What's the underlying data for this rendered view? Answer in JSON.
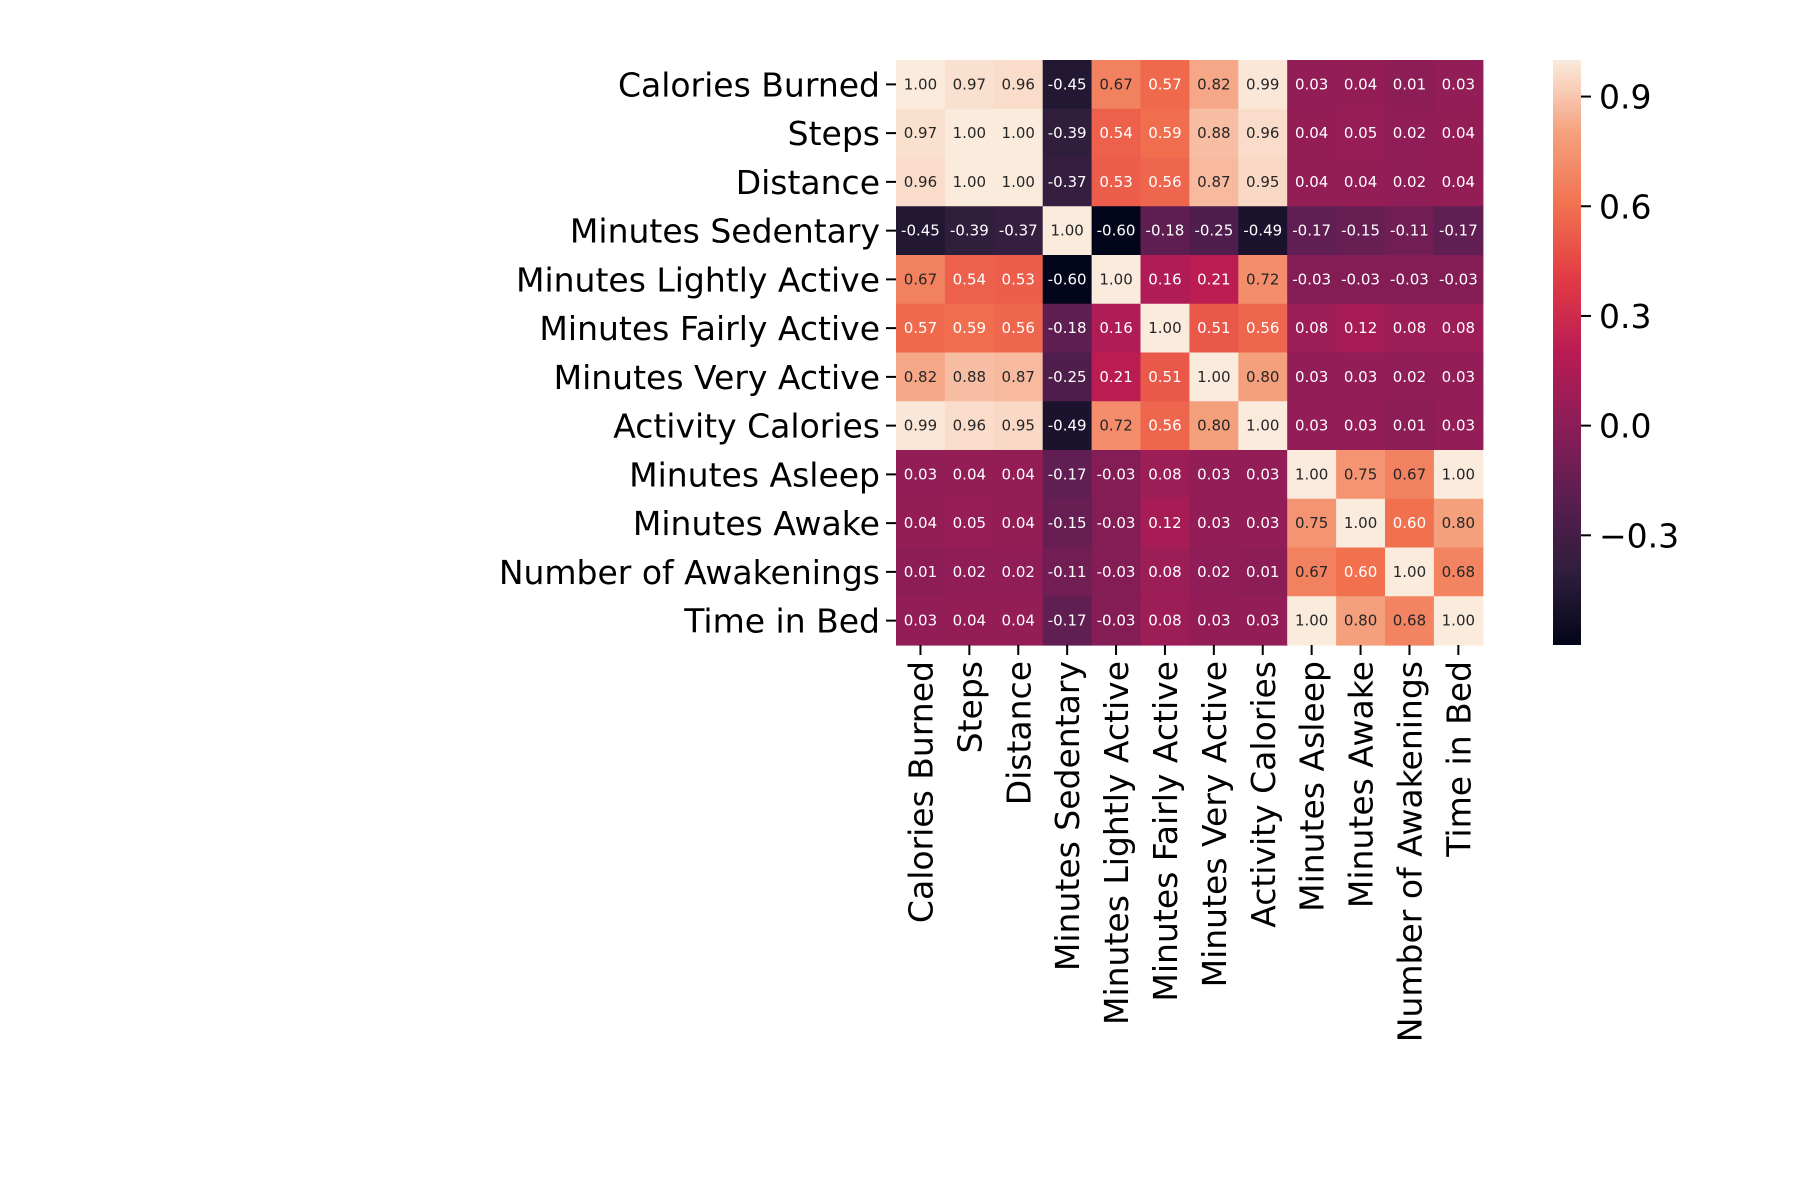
{
  "chart_data": {
    "type": "heatmap",
    "title": "",
    "xlabel": "",
    "ylabel": "",
    "labels": [
      "Calories Burned",
      "Steps",
      "Distance",
      "Minutes Sedentary",
      "Minutes Lightly Active",
      "Minutes Fairly Active",
      "Minutes Very Active",
      "Activity Calories",
      "Minutes Asleep",
      "Minutes Awake",
      "Number of Awakenings",
      "Time in Bed"
    ],
    "matrix": [
      [
        1.0,
        0.97,
        0.96,
        -0.45,
        0.67,
        0.57,
        0.82,
        0.99,
        0.03,
        0.04,
        0.01,
        0.03
      ],
      [
        0.97,
        1.0,
        1.0,
        -0.39,
        0.54,
        0.59,
        0.88,
        0.96,
        0.04,
        0.05,
        0.02,
        0.04
      ],
      [
        0.96,
        1.0,
        1.0,
        -0.37,
        0.53,
        0.56,
        0.87,
        0.95,
        0.04,
        0.04,
        0.02,
        0.04
      ],
      [
        -0.45,
        -0.39,
        -0.37,
        1.0,
        -0.6,
        -0.18,
        -0.25,
        -0.49,
        -0.17,
        -0.15,
        -0.11,
        -0.17
      ],
      [
        0.67,
        0.54,
        0.53,
        -0.6,
        1.0,
        0.16,
        0.21,
        0.72,
        -0.03,
        -0.03,
        -0.03,
        -0.03
      ],
      [
        0.57,
        0.59,
        0.56,
        -0.18,
        0.16,
        1.0,
        0.51,
        0.56,
        0.08,
        0.12,
        0.08,
        0.08
      ],
      [
        0.82,
        0.88,
        0.87,
        -0.25,
        0.21,
        0.51,
        1.0,
        0.8,
        0.03,
        0.03,
        0.02,
        0.03
      ],
      [
        0.99,
        0.96,
        0.95,
        -0.49,
        0.72,
        0.56,
        0.8,
        1.0,
        0.03,
        0.03,
        0.01,
        0.03
      ],
      [
        0.03,
        0.04,
        0.04,
        -0.17,
        -0.03,
        0.08,
        0.03,
        0.03,
        1.0,
        0.75,
        0.67,
        1.0
      ],
      [
        0.04,
        0.05,
        0.04,
        -0.15,
        -0.03,
        0.12,
        0.03,
        0.03,
        0.75,
        1.0,
        0.6,
        0.8
      ],
      [
        0.01,
        0.02,
        0.02,
        -0.11,
        -0.03,
        0.08,
        0.02,
        0.01,
        0.67,
        0.6,
        1.0,
        0.68
      ],
      [
        0.03,
        0.04,
        0.04,
        -0.17,
        -0.03,
        0.08,
        0.03,
        0.03,
        1.0,
        0.8,
        0.68,
        1.0
      ]
    ],
    "annotation_format": "2 decimals",
    "colormap": "rocket",
    "value_range": [
      -0.6,
      1.0
    ],
    "colorbar": {
      "ticks": [
        0.9,
        0.6,
        0.3,
        0.0,
        -0.3
      ],
      "tick_labels": [
        "0.9",
        "0.6",
        "0.3",
        "0.0",
        "−0.3"
      ],
      "placement": "right"
    },
    "grid": false
  }
}
